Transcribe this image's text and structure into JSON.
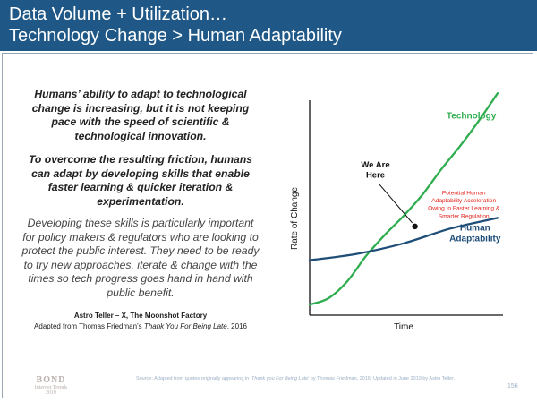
{
  "header": {
    "line1": "Data Volume + Utilization…",
    "line2": "Technology Change > Human Adaptability"
  },
  "left": {
    "para1": "Humans’ ability to adapt to technological change is increasing, but it is not keeping pace with the speed of scientific & technological innovation.",
    "para2": "To overcome the resulting friction, humans can adapt by developing skills that enable faster learning & quicker iteration & experimentation.",
    "para3": "Developing these skills is particularly important for policy makers & regulators who are looking to protect the public interest. They need to be ready to try new approaches, iterate & change with the times so tech progress goes hand in hand with public benefit.",
    "attribution_line1": "Astro Teller – X, The Moonshot Factory",
    "attribution_prefix": "Adapted from Thomas Friedman’s ",
    "attribution_book": "Thank You For Being Late",
    "attribution_suffix": ", 2016"
  },
  "chart_data": {
    "type": "line",
    "title": "",
    "xlabel": "Time",
    "ylabel": "Rate of Change",
    "xlim": [
      0,
      100
    ],
    "ylim": [
      0,
      100
    ],
    "grid": false,
    "series": [
      {
        "name": "Technology",
        "color": "#2fad4f",
        "x": [
          0,
          10,
          20,
          30,
          40,
          50,
          60,
          70,
          80,
          90,
          100
        ],
        "y": [
          5,
          8,
          16,
          28,
          38,
          47,
          57,
          69,
          80,
          92,
          105
        ]
      },
      {
        "name": "Human Adaptability",
        "color": "#1e4e78",
        "x": [
          0,
          25,
          50,
          75,
          100
        ],
        "y": [
          26,
          29,
          34,
          41,
          46
        ]
      }
    ],
    "annotations": [
      {
        "text": "We Are Here",
        "x": 56,
        "y": 42
      },
      {
        "text": "Potential Human Adaptability Acceleration Owing to Faster Learning & Smarter Regulation",
        "color": "#e2231a"
      }
    ],
    "legend_labels": {
      "technology": "Technology",
      "human_line1": "Human",
      "human_line2": "Adaptability"
    },
    "annotation_lines": {
      "here_line1": "We Are",
      "here_line2": "Here",
      "red1": "Potential Human",
      "red2": "Adaptability Acceleration",
      "red3": "Owing to Faster Learning &",
      "red4": "Smarter Regulation"
    }
  },
  "footer": {
    "logo_line1": "BOND",
    "logo_line2": "Internet Trends",
    "logo_line3": "2019",
    "source_prefix": "Source: Adapted from quotes originally appearing in ‘",
    "source_book": "Thank you For Being Late",
    "source_suffix": "’ by Thomas Friedman, 2016. Updated in June 2019 by Astro Teller.",
    "page_number": "156"
  }
}
